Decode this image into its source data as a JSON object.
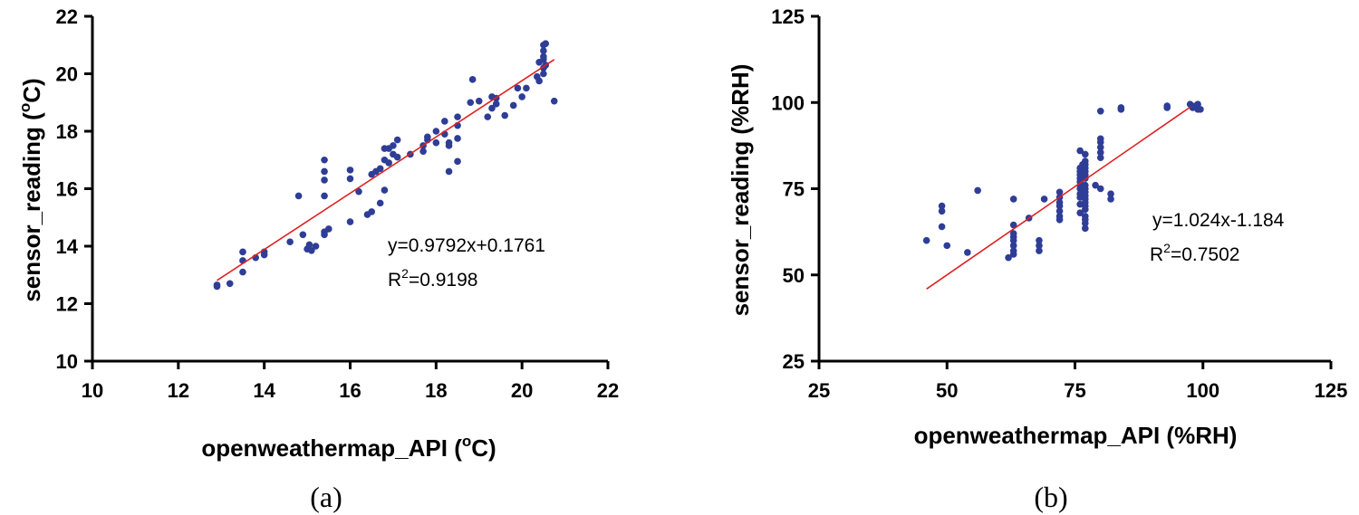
{
  "chart_data": [
    {
      "type": "scatter",
      "panel_label": "(a)",
      "xlabel": "openweathermap_API",
      "xlabel_unit_prefix": "(",
      "xlabel_unit_sup": "o",
      "xlabel_unit_suffix": "C)",
      "ylabel": "sensor_reading",
      "ylabel_unit_prefix": "(",
      "ylabel_unit_sup": "o",
      "ylabel_unit_suffix": "C)",
      "xlim": [
        10,
        22
      ],
      "ylim": [
        10,
        22
      ],
      "xticks": [
        "10",
        "12",
        "14",
        "16",
        "18",
        "20",
        "22"
      ],
      "yticks": [
        "10",
        "12",
        "14",
        "16",
        "18",
        "20",
        "22"
      ],
      "fit": {
        "slope": 0.9792,
        "intercept": 0.1761,
        "x_start": 12.9,
        "x_end": 20.75
      },
      "equation_text": "y=0.9792x+0.1761",
      "r2_prefix": "R",
      "r2_sup": "2",
      "r2_value": "=0.9198",
      "marker_color": "#2e3d96",
      "fit_color": "#e02020",
      "points": [
        [
          12.9,
          12.6
        ],
        [
          12.9,
          12.65
        ],
        [
          13.2,
          12.7
        ],
        [
          13.5,
          13.1
        ],
        [
          13.5,
          13.5
        ],
        [
          13.5,
          13.8
        ],
        [
          13.8,
          13.6
        ],
        [
          14,
          13.7
        ],
        [
          14,
          13.8
        ],
        [
          14.6,
          14.15
        ],
        [
          14.8,
          15.75
        ],
        [
          14.9,
          14.4
        ],
        [
          15,
          13.9
        ],
        [
          15.05,
          14.05
        ],
        [
          15.1,
          13.85
        ],
        [
          15.2,
          14.0
        ],
        [
          15.4,
          14.5
        ],
        [
          15.4,
          14.4
        ],
        [
          15.4,
          15.75
        ],
        [
          15.4,
          16.3
        ],
        [
          15.4,
          16.6
        ],
        [
          15.4,
          17.0
        ],
        [
          15.5,
          14.6
        ],
        [
          16,
          14.85
        ],
        [
          16,
          16.35
        ],
        [
          16,
          16.65
        ],
        [
          16.2,
          15.9
        ],
        [
          16.4,
          15.1
        ],
        [
          16.5,
          15.2
        ],
        [
          16.5,
          16.5
        ],
        [
          16.6,
          16.6
        ],
        [
          16.7,
          15.5
        ],
        [
          16.7,
          16.7
        ],
        [
          16.8,
          15.95
        ],
        [
          16.8,
          17.0
        ],
        [
          16.8,
          17.4
        ],
        [
          16.9,
          17.4
        ],
        [
          16.9,
          16.9
        ],
        [
          17,
          17.2
        ],
        [
          17,
          17.5
        ],
        [
          17.1,
          17.7
        ],
        [
          17.1,
          17.1
        ],
        [
          17.4,
          17.2
        ],
        [
          17.7,
          17.3
        ],
        [
          17.7,
          17.5
        ],
        [
          17.8,
          17.7
        ],
        [
          17.8,
          17.8
        ],
        [
          18,
          18.0
        ],
        [
          18,
          17.6
        ],
        [
          18.2,
          17.9
        ],
        [
          18.2,
          18.35
        ],
        [
          18.3,
          17.5
        ],
        [
          18.3,
          17.6
        ],
        [
          18.3,
          16.6
        ],
        [
          18.5,
          16.95
        ],
        [
          18.5,
          18.2
        ],
        [
          18.5,
          18.5
        ],
        [
          18.5,
          17.75
        ],
        [
          18.8,
          19.0
        ],
        [
          18.85,
          19.8
        ],
        [
          19,
          19.05
        ],
        [
          19.2,
          18.5
        ],
        [
          19.3,
          18.8
        ],
        [
          19.3,
          19.2
        ],
        [
          19.4,
          18.95
        ],
        [
          19.4,
          19.15
        ],
        [
          19.6,
          18.55
        ],
        [
          19.8,
          18.9
        ],
        [
          19.9,
          19.5
        ],
        [
          20,
          19.2
        ],
        [
          20.1,
          19.5
        ],
        [
          20.35,
          19.9
        ],
        [
          20.4,
          19.75
        ],
        [
          20.4,
          20.4
        ],
        [
          20.5,
          20.0
        ],
        [
          20.5,
          20.2
        ],
        [
          20.5,
          20.5
        ],
        [
          20.5,
          20.6
        ],
        [
          20.5,
          20.8
        ],
        [
          20.5,
          21.0
        ],
        [
          20.55,
          21.05
        ],
        [
          20.55,
          20.3
        ],
        [
          20.75,
          19.05
        ]
      ]
    },
    {
      "type": "scatter",
      "panel_label": "(b)",
      "xlabel": "openweathermap_API (%RH)",
      "ylabel": "sensor_reading (%RH)",
      "xlim": [
        25,
        125
      ],
      "ylim": [
        25,
        125
      ],
      "xticks": [
        "25",
        "50",
        "75",
        "100",
        "125"
      ],
      "yticks": [
        "25",
        "50",
        "75",
        "100",
        "125"
      ],
      "fit": {
        "slope": 1.024,
        "intercept": -1.184,
        "x_start": 46,
        "x_end": 97.5
      },
      "equation_text": "y=1.024x-1.184",
      "r2_prefix": "R",
      "r2_sup": "2",
      "r2_value": "=0.7502",
      "marker_color": "#2e3d96",
      "fit_color": "#e02020",
      "points": [
        [
          46,
          60
        ],
        [
          49,
          64
        ],
        [
          49,
          68.5
        ],
        [
          49,
          70
        ],
        [
          50,
          58.5
        ],
        [
          54,
          56.5
        ],
        [
          56,
          74.5
        ],
        [
          62,
          55
        ],
        [
          63,
          56
        ],
        [
          63,
          57
        ],
        [
          63,
          58.5
        ],
        [
          63,
          60
        ],
        [
          63,
          61
        ],
        [
          63,
          62
        ],
        [
          63,
          64.5
        ],
        [
          63,
          72
        ],
        [
          66,
          66.5
        ],
        [
          68,
          57
        ],
        [
          68,
          58.5
        ],
        [
          68,
          60
        ],
        [
          69,
          72
        ],
        [
          72,
          66
        ],
        [
          72,
          67
        ],
        [
          72,
          68.5
        ],
        [
          72,
          70
        ],
        [
          72,
          71
        ],
        [
          72,
          72.5
        ],
        [
          72,
          74
        ],
        [
          76,
          68
        ],
        [
          76,
          70.5
        ],
        [
          76,
          72.5
        ],
        [
          76,
          73.5
        ],
        [
          76,
          75
        ],
        [
          76,
          76
        ],
        [
          76,
          77
        ],
        [
          76,
          78
        ],
        [
          76,
          79
        ],
        [
          76,
          80
        ],
        [
          76,
          81
        ],
        [
          76,
          86
        ],
        [
          76.5,
          82
        ],
        [
          77,
          63.5
        ],
        [
          77,
          65
        ],
        [
          77,
          66
        ],
        [
          77,
          67
        ],
        [
          77,
          69
        ],
        [
          77,
          70
        ],
        [
          77,
          71
        ],
        [
          77,
          72
        ],
        [
          77,
          73
        ],
        [
          77,
          74
        ],
        [
          77,
          75
        ],
        [
          77,
          76
        ],
        [
          77,
          78
        ],
        [
          77,
          79
        ],
        [
          77,
          80
        ],
        [
          77,
          81
        ],
        [
          77,
          82
        ],
        [
          77,
          83
        ],
        [
          77,
          85
        ],
        [
          79,
          76
        ],
        [
          80,
          75
        ],
        [
          80,
          84
        ],
        [
          80,
          85.5
        ],
        [
          80,
          87
        ],
        [
          80,
          88.5
        ],
        [
          80,
          89.5
        ],
        [
          80,
          97.5
        ],
        [
          82,
          72
        ],
        [
          82,
          73.5
        ],
        [
          84,
          98
        ],
        [
          84,
          98.5
        ],
        [
          93,
          98.5
        ],
        [
          93,
          99
        ],
        [
          97.5,
          99.5
        ],
        [
          98,
          98.5
        ],
        [
          98.5,
          99
        ],
        [
          99,
          98
        ],
        [
          99,
          99.5
        ],
        [
          99.5,
          98
        ]
      ]
    }
  ]
}
